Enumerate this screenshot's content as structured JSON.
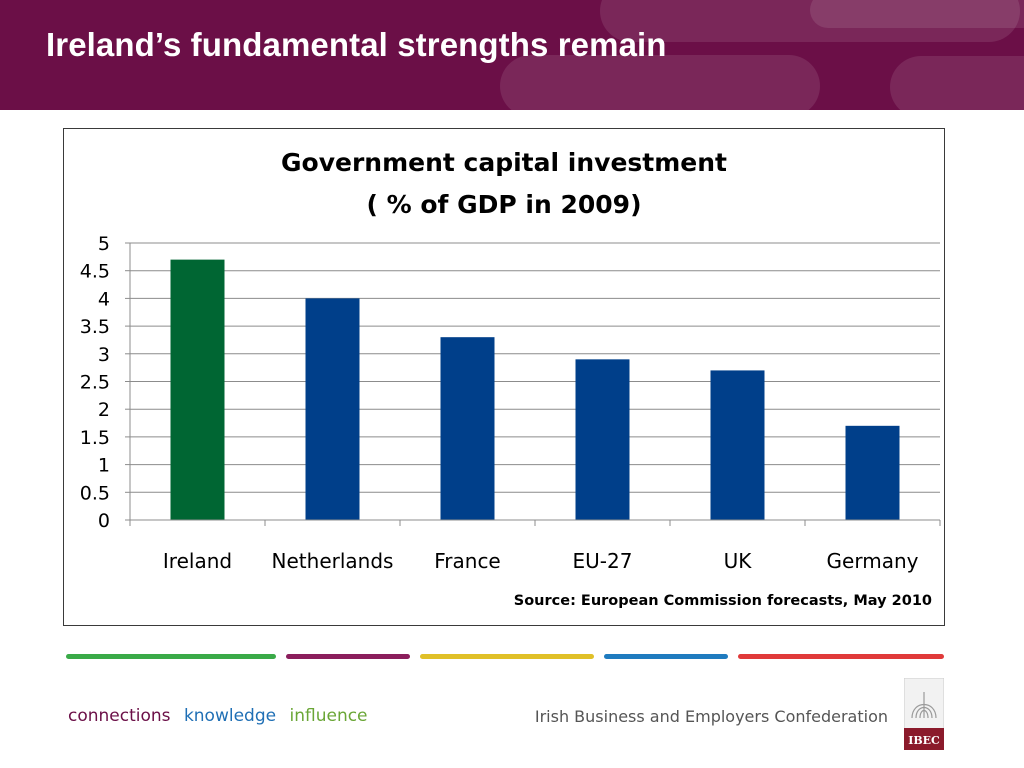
{
  "slide": {
    "title": "Ireland’s fundamental strengths remain"
  },
  "chart_data": {
    "type": "bar",
    "title_line1": "Government capital investment",
    "title_line2": "( % of GDP in 2009)",
    "categories": [
      "Ireland",
      "Netherlands",
      "France",
      "EU-27",
      "UK",
      "Germany"
    ],
    "values": [
      4.7,
      4.0,
      3.3,
      2.9,
      2.7,
      1.7
    ],
    "colors": [
      "#006633",
      "#003f8a",
      "#003f8a",
      "#003f8a",
      "#003f8a",
      "#003f8a"
    ],
    "ylim": [
      0,
      5
    ],
    "yticks": [
      "0",
      "0.5",
      "1",
      "1.5",
      "2",
      "2.5",
      "3",
      "3.5",
      "4",
      "4.5",
      "5"
    ],
    "grid": true,
    "legend": "none",
    "source": "Source: European Commission forecasts, May 2010"
  },
  "footer": {
    "tagline": [
      "connections",
      "knowledge",
      "influence"
    ],
    "tagline_colors": [
      "#6b0f47",
      "#1f6fb5",
      "#6aa636"
    ],
    "org_name": "Irish Business and Employers Confederation",
    "logo_text": "IBEC",
    "stripe_colors": [
      "#3aaa48",
      "#8b1e5c",
      "#e0c028",
      "#1f7bbf",
      "#e03a3a"
    ]
  }
}
